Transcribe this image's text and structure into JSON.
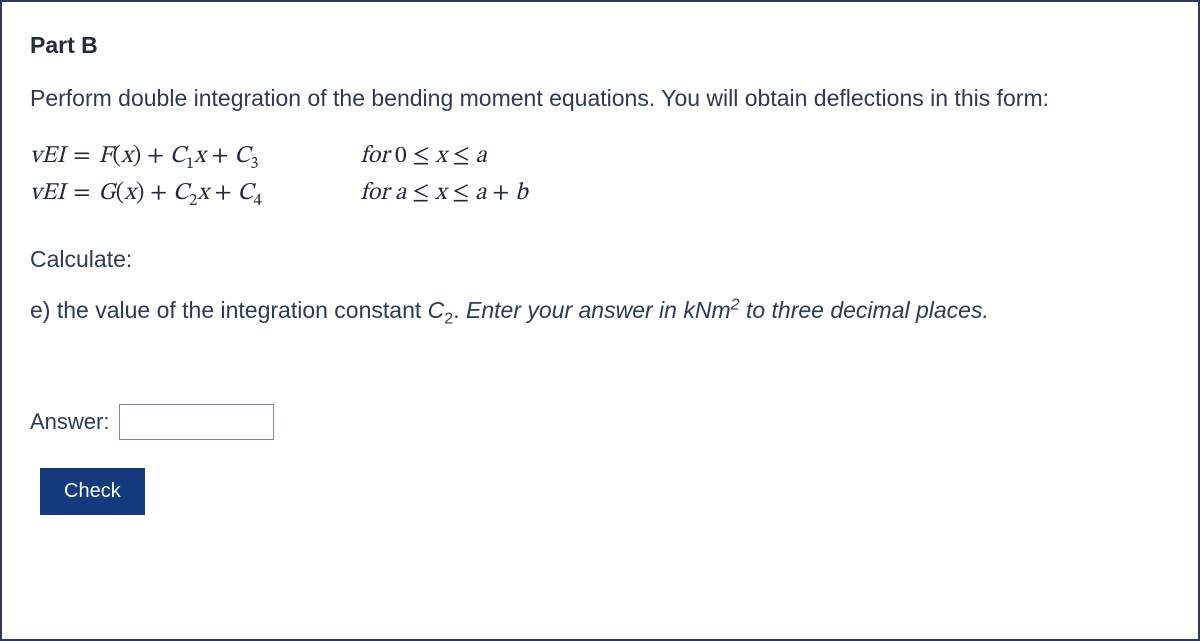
{
  "part_title": "Part B",
  "instruction": "Perform double integration of the bending moment equations. You will obtain deflections in this form:",
  "equations": {
    "row1": {
      "lhs_v": "v",
      "lhs_EI": "EI",
      "eq": "=",
      "F": "F",
      "x": "x",
      "C1": "C",
      "C1_sub": "1",
      "C3": "C",
      "C3_sub": "3",
      "for": "for",
      "zero": "0",
      "a": "a"
    },
    "row2": {
      "lhs_v": "v",
      "lhs_EI": "EI",
      "eq": "=",
      "G": "G",
      "x": "x",
      "C2": "C",
      "C2_sub": "2",
      "C4": "C",
      "C4_sub": "4",
      "for": "for",
      "a": "a",
      "b": "b"
    }
  },
  "calculate": "Calculate:",
  "question": {
    "prefix": "e) the value of the integration constant ",
    "var": "C",
    "var_sub": "2",
    "middle": ". ",
    "hint1": "Enter your answer in kNm",
    "hint_sup": "2",
    "hint2": " to three decimal places."
  },
  "answer_label": "Answer:",
  "answer_value": "",
  "check_label": "Check",
  "colors": {
    "border": "#2b3a55",
    "text": "#202b3b",
    "button_bg": "#133a7c",
    "button_text": "#ffffff",
    "input_border": "#7b8aa3",
    "background": "#ffffff"
  }
}
